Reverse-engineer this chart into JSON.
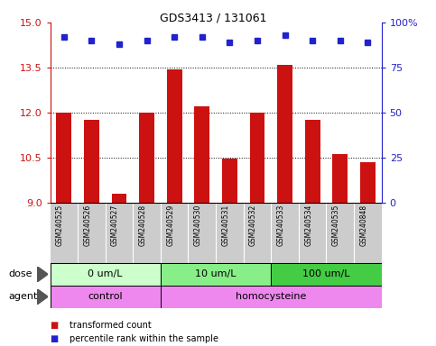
{
  "title": "GDS3413 / 131061",
  "samples": [
    "GSM240525",
    "GSM240526",
    "GSM240527",
    "GSM240528",
    "GSM240529",
    "GSM240530",
    "GSM240531",
    "GSM240532",
    "GSM240533",
    "GSM240534",
    "GSM240535",
    "GSM240848"
  ],
  "bar_values": [
    12.0,
    11.75,
    9.3,
    12.0,
    13.45,
    12.2,
    10.45,
    12.0,
    13.6,
    11.75,
    10.6,
    10.35
  ],
  "percentile_values": [
    92,
    90,
    88,
    90,
    92,
    92,
    89,
    90,
    93,
    90,
    90,
    89
  ],
  "ylim_left": [
    9,
    15
  ],
  "ylim_right": [
    0,
    100
  ],
  "yticks_left": [
    9,
    10.5,
    12,
    13.5,
    15
  ],
  "yticks_right": [
    0,
    25,
    50,
    75,
    100
  ],
  "ytick_labels_right": [
    "0",
    "25",
    "50",
    "75",
    "100%"
  ],
  "bar_color": "#cc1111",
  "dot_color": "#2222cc",
  "groups_dose": [
    {
      "label": "0 um/L",
      "start": 0,
      "end": 4,
      "color": "#ccffcc"
    },
    {
      "label": "10 um/L",
      "start": 4,
      "end": 8,
      "color": "#88ee88"
    },
    {
      "label": "100 um/L",
      "start": 8,
      "end": 12,
      "color": "#44cc44"
    }
  ],
  "groups_agent": [
    {
      "label": "control",
      "start": 0,
      "end": 4,
      "color": "#ee88ee"
    },
    {
      "label": "homocysteine",
      "start": 4,
      "end": 12,
      "color": "#ee88ee"
    }
  ],
  "legend_items": [
    {
      "color": "#cc1111",
      "label": "transformed count"
    },
    {
      "color": "#2222cc",
      "label": "percentile rank within the sample"
    }
  ],
  "axis_color_left": "#cc1111",
  "axis_color_right": "#2222cc",
  "gridline_color": "black",
  "gridline_style": ":",
  "gridline_ticks": [
    10.5,
    12.0,
    13.5
  ],
  "sample_bg_color": "#cccccc",
  "sample_sep_color": "#ffffff"
}
